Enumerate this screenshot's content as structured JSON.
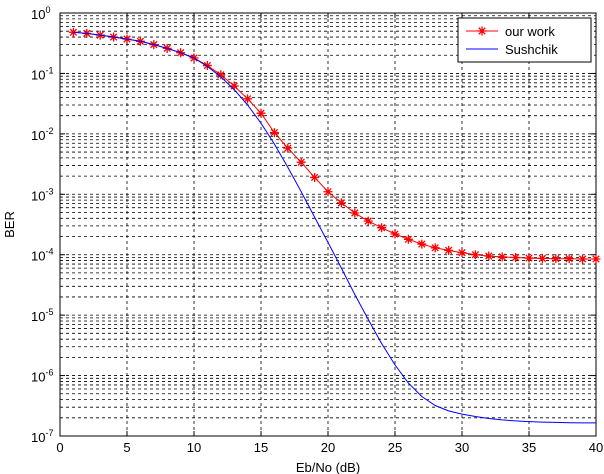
{
  "chart_data": {
    "type": "line",
    "xlabel": "Eb/No (dB)",
    "ylabel": "BER",
    "xlim": [
      0,
      40
    ],
    "ylim": [
      1e-07,
      1
    ],
    "yscale": "log",
    "x_ticks": [
      0,
      5,
      10,
      15,
      20,
      25,
      30,
      35,
      40
    ],
    "y_ticks": [
      {
        "base": "10",
        "exp": "0"
      },
      {
        "base": "10",
        "exp": "-1"
      },
      {
        "base": "10",
        "exp": "-2"
      },
      {
        "base": "10",
        "exp": "-3"
      },
      {
        "base": "10",
        "exp": "-4"
      },
      {
        "base": "10",
        "exp": "-5"
      },
      {
        "base": "10",
        "exp": "-6"
      },
      {
        "base": "10",
        "exp": "-7"
      }
    ],
    "grid": true,
    "legend_position": "top-right",
    "series": [
      {
        "name": "our work",
        "color": "#ff0000",
        "marker": "asterisk",
        "x": [
          1,
          2,
          3,
          4,
          5,
          6,
          7,
          8,
          9,
          10,
          11,
          12,
          13,
          14,
          15,
          16,
          17,
          18,
          19,
          20,
          21,
          22,
          23,
          24,
          25,
          26,
          27,
          28,
          29,
          30,
          31,
          32,
          33,
          34,
          35,
          36,
          37,
          38,
          39,
          40
        ],
        "y": [
          0.48,
          0.46,
          0.43,
          0.4,
          0.37,
          0.34,
          0.3,
          0.26,
          0.22,
          0.18,
          0.135,
          0.095,
          0.062,
          0.038,
          0.022,
          0.0105,
          0.0058,
          0.0034,
          0.0019,
          0.0011,
          0.00072,
          0.00049,
          0.00036,
          0.00028,
          0.00022,
          0.00018,
          0.00015,
          0.00013,
          0.000118,
          0.000108,
          0.0001,
          9.5e-05,
          9.2e-05,
          9e-05,
          8.8e-05,
          8.7e-05,
          8.6e-05,
          8.6e-05,
          8.5e-05,
          8.5e-05
        ]
      },
      {
        "name": "Sushchik",
        "color": "#0000ff",
        "marker": "none",
        "x": [
          1,
          2,
          3,
          4,
          5,
          6,
          7,
          8,
          9,
          10,
          11,
          12,
          13,
          14,
          15,
          16,
          17,
          18,
          19,
          20,
          21,
          22,
          23,
          24,
          25,
          26,
          27,
          28,
          29,
          30,
          31,
          32,
          33,
          34,
          35,
          36,
          37,
          38,
          39,
          40
        ],
        "y": [
          0.48,
          0.46,
          0.43,
          0.4,
          0.37,
          0.34,
          0.3,
          0.26,
          0.22,
          0.18,
          0.13,
          0.088,
          0.054,
          0.03,
          0.015,
          0.0068,
          0.0028,
          0.0011,
          0.00042,
          0.00016,
          6e-05,
          2.2e-05,
          8.5e-06,
          3.4e-06,
          1.5e-06,
          7.5e-07,
          4.5e-07,
          3.2e-07,
          2.6e-07,
          2.3e-07,
          2.1e-07,
          1.95e-07,
          1.85e-07,
          1.78e-07,
          1.73e-07,
          1.7e-07,
          1.68e-07,
          1.66e-07,
          1.65e-07,
          1.65e-07
        ]
      }
    ]
  }
}
